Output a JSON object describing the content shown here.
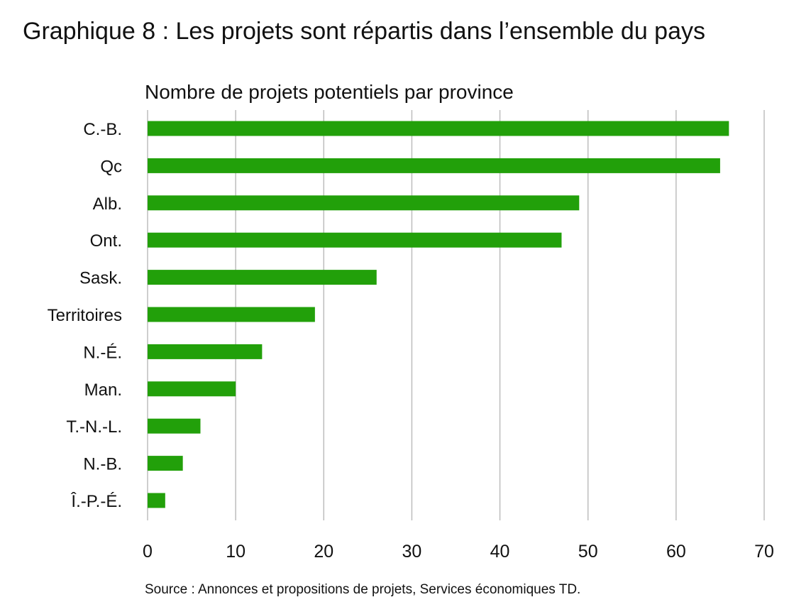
{
  "chart_data": {
    "type": "bar",
    "orientation": "horizontal",
    "title": "Graphique 8 : Les projets sont répartis dans l’ensemble du pays",
    "subtitle": "Nombre de projets potentiels par province",
    "categories": [
      "C.-B.",
      "Qc",
      "Alb.",
      "Ont.",
      "Sask.",
      "Territoires",
      "N.-É.",
      "Man.",
      "T.-N.-L.",
      "N.-B.",
      "Î.-P.-É."
    ],
    "values": [
      66,
      65,
      49,
      47,
      26,
      19,
      13,
      10,
      6,
      4,
      2
    ],
    "xlim": [
      0,
      70
    ],
    "xticks": [
      0,
      10,
      20,
      30,
      40,
      50,
      60,
      70
    ],
    "grid": "vertical",
    "legend": "none",
    "bar_color": "#22a00a",
    "grid_color": "#bdbdbd"
  },
  "source": "Source : Annonces et propositions de projets, Services économiques TD."
}
